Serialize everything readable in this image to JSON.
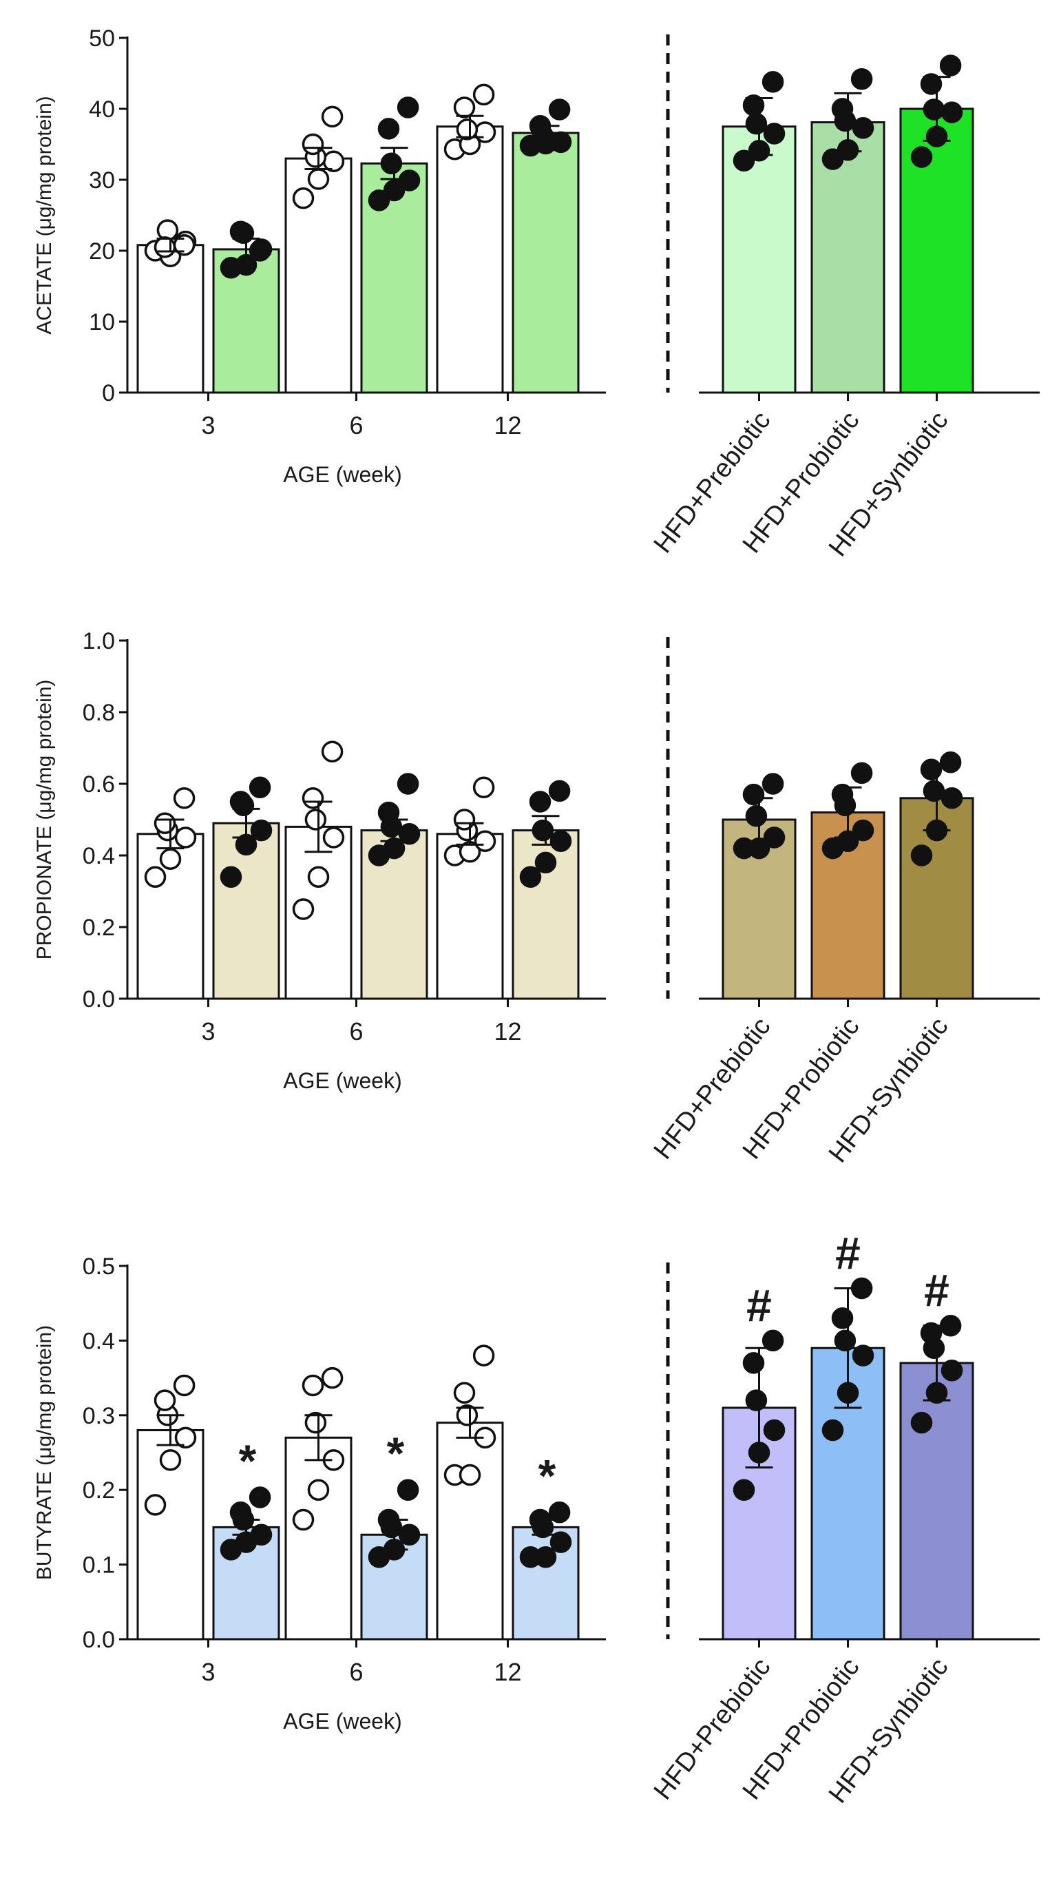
{
  "figure": {
    "panels_left": [
      {
        "id": "acetate",
        "ylabel": "ACETATE (μg/mg protein)",
        "xlabel": "AGE (week)",
        "ylim": [
          0,
          50
        ],
        "ticks": [
          0,
          10,
          20,
          30,
          40,
          50
        ],
        "tick_labels": [
          "0",
          "10",
          "20",
          "30",
          "40",
          "50"
        ],
        "colors": {
          "control": "#ffffff",
          "hfd": "#a8ec9c"
        },
        "groups": [
          {
            "label": "3",
            "control": {
              "mean": 20.8,
              "err": 0.9,
              "points": [
                20.0,
                19.2,
                21.3,
                22.9,
                20.5,
                20.8
              ]
            },
            "hfd": {
              "mean": 20.2,
              "err": 1.5,
              "points": [
                17.6,
                18.0,
                20.2,
                22.5,
                22.7,
                20.0
              ],
              "annotation": ""
            }
          },
          {
            "label": "6",
            "control": {
              "mean": 33.0,
              "err": 1.5,
              "points": [
                27.4,
                30.1,
                32.6,
                33.2,
                35.0,
                38.9
              ]
            },
            "hfd": {
              "mean": 32.3,
              "err": 2.2,
              "points": [
                27.1,
                28.5,
                29.9,
                32.3,
                37.2,
                40.2
              ],
              "annotation": ""
            }
          },
          {
            "label": "12",
            "control": {
              "mean": 37.5,
              "err": 1.5,
              "points": [
                34.3,
                35.0,
                36.7,
                37.1,
                40.2,
                42.0
              ]
            },
            "hfd": {
              "mean": 36.6,
              "err": 1.0,
              "points": [
                34.8,
                35.1,
                35.3,
                36.2,
                37.6,
                39.9
              ],
              "annotation": ""
            }
          }
        ]
      },
      {
        "id": "propionate",
        "ylabel": "PROPIONATE (μg/mg protein)",
        "xlabel": "AGE (week)",
        "ylim": [
          0,
          1.0
        ],
        "ticks": [
          0,
          0.2,
          0.4,
          0.6,
          0.8,
          1.0
        ],
        "tick_labels": [
          "0.0",
          "0.2",
          "0.4",
          "0.6",
          "0.8",
          "1.0"
        ],
        "colors": {
          "control": "#ffffff",
          "hfd": "#ece6c8"
        },
        "groups": [
          {
            "label": "3",
            "control": {
              "mean": 0.46,
              "err": 0.04,
              "points": [
                0.34,
                0.39,
                0.45,
                0.47,
                0.49,
                0.56
              ]
            },
            "hfd": {
              "mean": 0.49,
              "err": 0.04,
              "points": [
                0.34,
                0.43,
                0.47,
                0.54,
                0.55,
                0.59
              ],
              "annotation": ""
            }
          },
          {
            "label": "6",
            "control": {
              "mean": 0.48,
              "err": 0.07,
              "points": [
                0.25,
                0.34,
                0.45,
                0.5,
                0.56,
                0.69
              ]
            },
            "hfd": {
              "mean": 0.47,
              "err": 0.03,
              "points": [
                0.4,
                0.42,
                0.46,
                0.48,
                0.52,
                0.6
              ],
              "annotation": ""
            }
          },
          {
            "label": "12",
            "control": {
              "mean": 0.46,
              "err": 0.03,
              "points": [
                0.4,
                0.41,
                0.44,
                0.47,
                0.5,
                0.59
              ]
            },
            "hfd": {
              "mean": 0.47,
              "err": 0.04,
              "points": [
                0.34,
                0.38,
                0.44,
                0.47,
                0.55,
                0.58
              ],
              "annotation": ""
            }
          }
        ]
      },
      {
        "id": "butyrate",
        "ylabel": "BUTYRATE (μg/mg protein)",
        "xlabel": "AGE (week)",
        "ylim": [
          0,
          0.5
        ],
        "ticks": [
          0,
          0.1,
          0.2,
          0.3,
          0.4,
          0.5
        ],
        "tick_labels": [
          "0.0",
          "0.1",
          "0.2",
          "0.3",
          "0.4",
          "0.5"
        ],
        "colors": {
          "control": "#ffffff",
          "hfd": "#c4dcf6"
        },
        "groups": [
          {
            "label": "3",
            "control": {
              "mean": 0.28,
              "err": 0.02,
              "points": [
                0.18,
                0.24,
                0.27,
                0.3,
                0.32,
                0.34
              ]
            },
            "hfd": {
              "mean": 0.15,
              "err": 0.01,
              "points": [
                0.12,
                0.13,
                0.14,
                0.16,
                0.17,
                0.19
              ],
              "annotation": "*"
            }
          },
          {
            "label": "6",
            "control": {
              "mean": 0.27,
              "err": 0.03,
              "points": [
                0.16,
                0.2,
                0.24,
                0.29,
                0.34,
                0.35
              ]
            },
            "hfd": {
              "mean": 0.14,
              "err": 0.02,
              "points": [
                0.11,
                0.12,
                0.14,
                0.15,
                0.16,
                0.2
              ],
              "annotation": "*"
            }
          },
          {
            "label": "12",
            "control": {
              "mean": 0.29,
              "err": 0.02,
              "points": [
                0.22,
                0.22,
                0.27,
                0.3,
                0.33,
                0.38
              ]
            },
            "hfd": {
              "mean": 0.15,
              "err": 0.01,
              "points": [
                0.11,
                0.11,
                0.13,
                0.15,
                0.16,
                0.17
              ],
              "annotation": "*"
            }
          }
        ]
      }
    ],
    "panels_right": [
      {
        "id": "acetate-treatments",
        "categories": [
          "HFD+Prebiotic",
          "HFD+Probiotic",
          "HFD+Synbiotic"
        ],
        "colors": [
          "#c8facc",
          "#a9dfa6",
          "#1ee226"
        ],
        "bars": [
          {
            "mean": 37.5,
            "sd": 4.0,
            "points": [
              32.7,
              34.1,
              36.5,
              37.9,
              40.5,
              43.8
            ],
            "annotation": ""
          },
          {
            "mean": 38.1,
            "sd": 4.1,
            "points": [
              32.9,
              34.2,
              37.3,
              38.3,
              40.0,
              44.2
            ],
            "annotation": ""
          },
          {
            "mean": 40.0,
            "sd": 4.5,
            "points": [
              33.2,
              36.1,
              39.5,
              39.9,
              43.5,
              46.1
            ],
            "annotation": ""
          }
        ]
      },
      {
        "id": "propionate-treatments",
        "categories": [
          "HFD+Prebiotic",
          "HFD+Probiotic",
          "HFD+Synbiotic"
        ],
        "colors": [
          "#c2b57e",
          "#c9914e",
          "#a08c42"
        ],
        "bars": [
          {
            "mean": 0.5,
            "sd": 0.06,
            "points": [
              0.42,
              0.42,
              0.45,
              0.51,
              0.57,
              0.6
            ],
            "annotation": ""
          },
          {
            "mean": 0.52,
            "sd": 0.07,
            "points": [
              0.42,
              0.44,
              0.47,
              0.54,
              0.57,
              0.63
            ],
            "annotation": ""
          },
          {
            "mean": 0.56,
            "sd": 0.09,
            "points": [
              0.4,
              0.47,
              0.56,
              0.58,
              0.64,
              0.66
            ],
            "annotation": ""
          }
        ]
      },
      {
        "id": "butyrate-treatments",
        "categories": [
          "HFD+Prebiotic",
          "HFD+Probiotic",
          "HFD+Synbiotic"
        ],
        "colors": [
          "#c1befa",
          "#8dbef6",
          "#8c8fd1"
        ],
        "bars": [
          {
            "mean": 0.31,
            "sd": 0.08,
            "points": [
              0.2,
              0.25,
              0.28,
              0.32,
              0.37,
              0.4
            ],
            "annotation": "#"
          },
          {
            "mean": 0.39,
            "sd": 0.08,
            "points": [
              0.28,
              0.33,
              0.38,
              0.4,
              0.43,
              0.47
            ],
            "annotation": "#"
          },
          {
            "mean": 0.37,
            "sd": 0.05,
            "points": [
              0.29,
              0.33,
              0.36,
              0.39,
              0.41,
              0.42
            ],
            "annotation": "#"
          }
        ]
      }
    ]
  }
}
